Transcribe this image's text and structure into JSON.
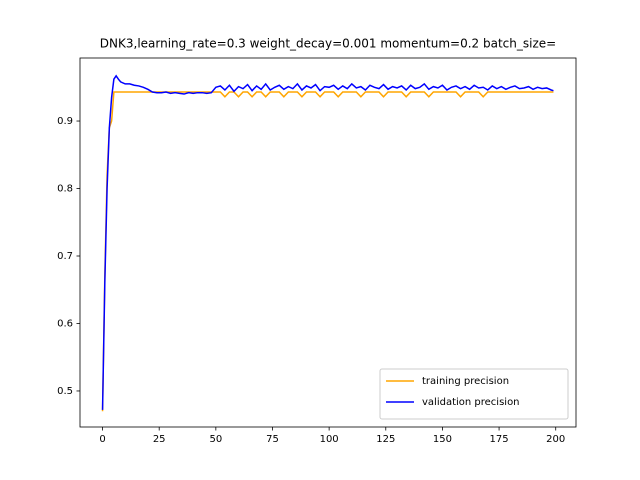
{
  "chart_data": {
    "type": "line",
    "title": "DNK3,learning_rate=0.3  weight_decay=0.001  momentum=0.2  batch_size=",
    "x": [
      0,
      1,
      2,
      3,
      4,
      5,
      6,
      7,
      8,
      10,
      12,
      14,
      16,
      18,
      20,
      22,
      24,
      26,
      28,
      30,
      32,
      34,
      36,
      38,
      40,
      42,
      44,
      46,
      48,
      50,
      52,
      54,
      56,
      58,
      60,
      62,
      64,
      66,
      68,
      70,
      72,
      74,
      76,
      78,
      80,
      82,
      84,
      86,
      88,
      90,
      92,
      94,
      96,
      98,
      100,
      102,
      104,
      106,
      108,
      110,
      112,
      114,
      116,
      118,
      120,
      122,
      124,
      126,
      128,
      130,
      132,
      134,
      136,
      138,
      140,
      142,
      144,
      146,
      148,
      150,
      152,
      154,
      156,
      158,
      160,
      162,
      164,
      166,
      168,
      170,
      172,
      174,
      176,
      178,
      180,
      182,
      184,
      186,
      188,
      190,
      192,
      194,
      196,
      198,
      199
    ],
    "series": [
      {
        "name": "training precision",
        "color": "#ffa500",
        "values": [
          0.47,
          0.67,
          0.82,
          0.89,
          0.9,
          0.943,
          0.943,
          0.943,
          0.943,
          0.943,
          0.943,
          0.943,
          0.943,
          0.943,
          0.943,
          0.943,
          0.943,
          0.943,
          0.943,
          0.943,
          0.943,
          0.943,
          0.943,
          0.943,
          0.943,
          0.943,
          0.943,
          0.943,
          0.943,
          0.943,
          0.943,
          0.936,
          0.943,
          0.943,
          0.936,
          0.943,
          0.943,
          0.936,
          0.943,
          0.943,
          0.936,
          0.943,
          0.943,
          0.943,
          0.936,
          0.943,
          0.943,
          0.943,
          0.936,
          0.943,
          0.943,
          0.943,
          0.936,
          0.943,
          0.943,
          0.943,
          0.936,
          0.943,
          0.943,
          0.943,
          0.943,
          0.936,
          0.943,
          0.943,
          0.943,
          0.943,
          0.936,
          0.943,
          0.943,
          0.943,
          0.943,
          0.936,
          0.943,
          0.943,
          0.943,
          0.943,
          0.936,
          0.943,
          0.943,
          0.943,
          0.943,
          0.943,
          0.943,
          0.936,
          0.943,
          0.943,
          0.943,
          0.943,
          0.936,
          0.943,
          0.943,
          0.943,
          0.943,
          0.943,
          0.943,
          0.943,
          0.943,
          0.943,
          0.943,
          0.943,
          0.943,
          0.943,
          0.943,
          0.943,
          0.943
        ]
      },
      {
        "name": "validation precision",
        "color": "#0000ff",
        "values": [
          0.472,
          0.66,
          0.8,
          0.89,
          0.935,
          0.962,
          0.967,
          0.962,
          0.958,
          0.955,
          0.955,
          0.953,
          0.952,
          0.95,
          0.947,
          0.943,
          0.942,
          0.942,
          0.943,
          0.941,
          0.942,
          0.941,
          0.94,
          0.942,
          0.941,
          0.942,
          0.942,
          0.941,
          0.942,
          0.95,
          0.952,
          0.946,
          0.953,
          0.944,
          0.951,
          0.948,
          0.954,
          0.945,
          0.952,
          0.947,
          0.955,
          0.946,
          0.95,
          0.953,
          0.947,
          0.951,
          0.948,
          0.955,
          0.946,
          0.952,
          0.949,
          0.954,
          0.945,
          0.951,
          0.95,
          0.953,
          0.947,
          0.952,
          0.948,
          0.955,
          0.949,
          0.951,
          0.946,
          0.953,
          0.95,
          0.948,
          0.954,
          0.947,
          0.951,
          0.949,
          0.952,
          0.946,
          0.953,
          0.948,
          0.95,
          0.955,
          0.947,
          0.951,
          0.949,
          0.953,
          0.946,
          0.95,
          0.952,
          0.948,
          0.951,
          0.947,
          0.953,
          0.949,
          0.95,
          0.946,
          0.952,
          0.948,
          0.951,
          0.947,
          0.95,
          0.952,
          0.948,
          0.949,
          0.951,
          0.947,
          0.95,
          0.948,
          0.949,
          0.946,
          0.945
        ]
      }
    ],
    "xlim": [
      -9.95,
      208.95
    ],
    "xticks": [
      0,
      25,
      50,
      75,
      100,
      125,
      150,
      175,
      200
    ],
    "ylim": [
      0.4466,
      0.9934
    ],
    "yticks": [
      0.5,
      0.6,
      0.7,
      0.8,
      0.9
    ],
    "legend": "lower right"
  }
}
